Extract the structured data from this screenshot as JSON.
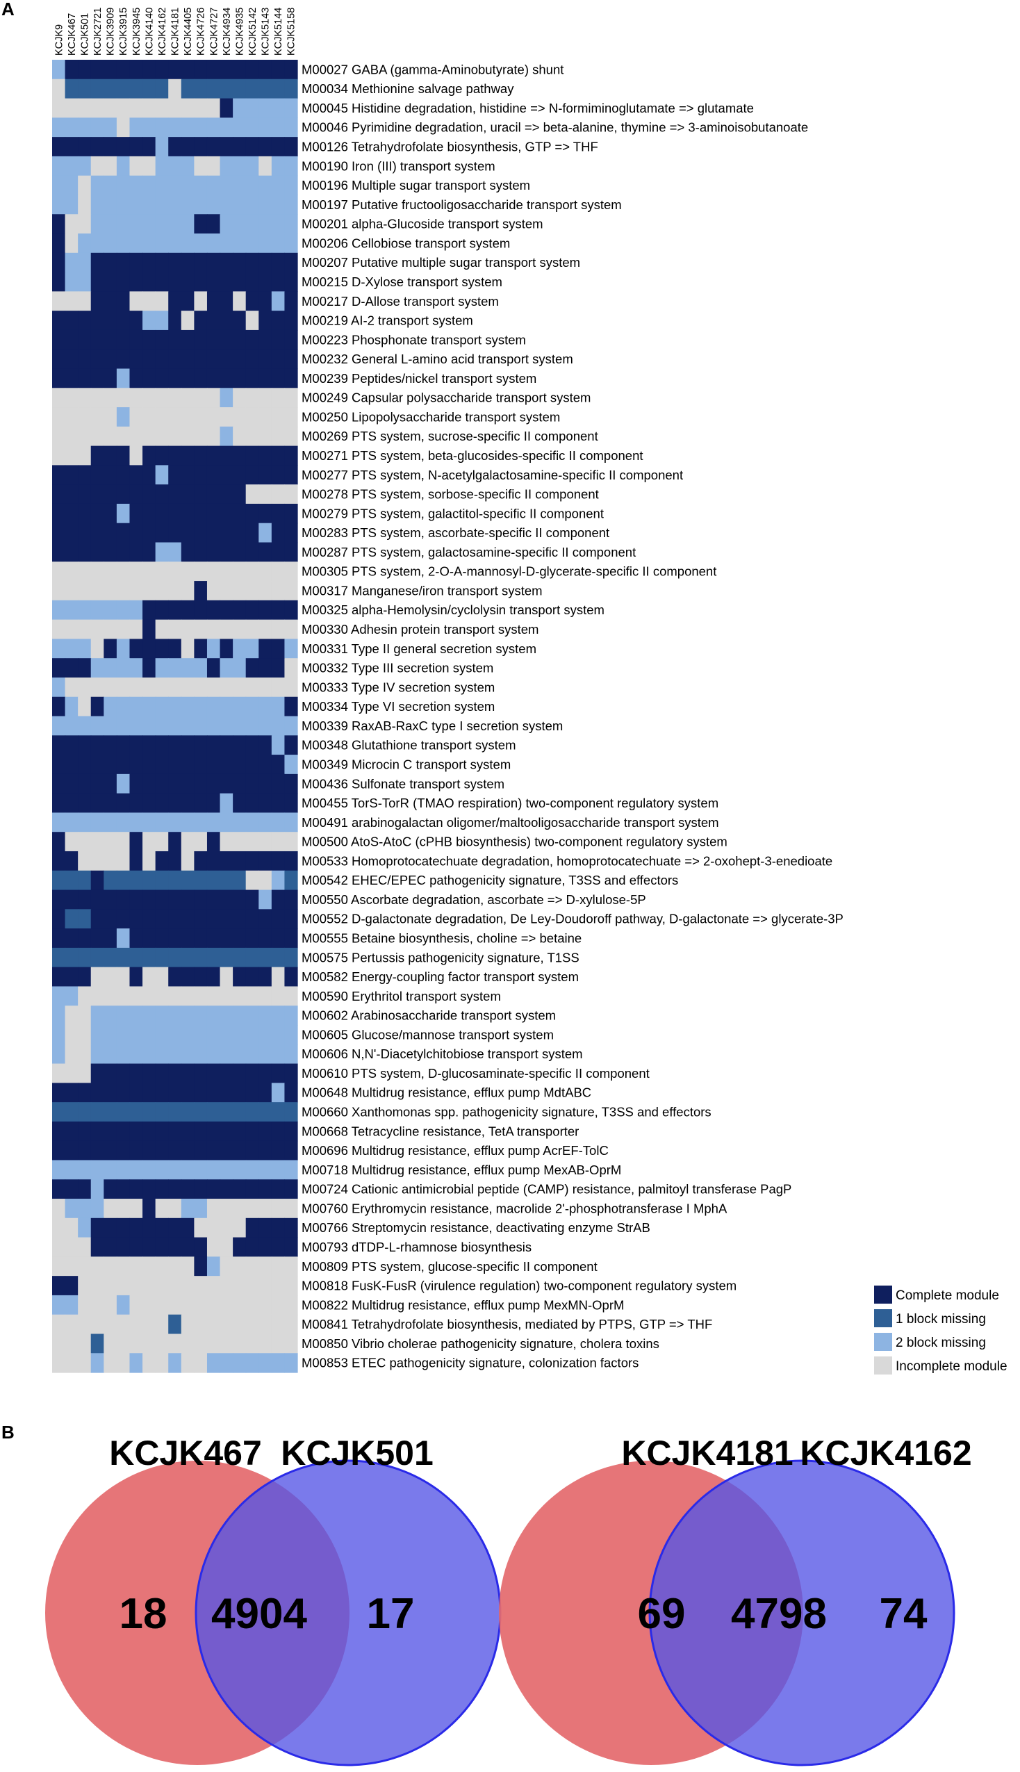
{
  "panels": {
    "a_label": "A",
    "b_label": "B"
  },
  "chart_data": [
    {
      "type": "heatmap",
      "columns": [
        "KCJK9",
        "KCJK467",
        "KCJK501",
        "KCJK2721",
        "KCJK3909",
        "KCJK3915",
        "KCJK3945",
        "KCJK4140",
        "KCJK4162",
        "KCJK4181",
        "KCJK4405",
        "KCJK4726",
        "KCJK4727",
        "KCJK4934",
        "KCJK4935",
        "KCJK5142",
        "KCJK5143",
        "KCJK5144",
        "KCJK5158"
      ],
      "rows": [
        {
          "id": "M00027",
          "name": "GABA (gamma-Aminobutyrate) shunt"
        },
        {
          "id": "M00034",
          "name": "Methionine salvage pathway"
        },
        {
          "id": "M00045",
          "name": "Histidine degradation, histidine => N-formiminoglutamate => glutamate"
        },
        {
          "id": "M00046",
          "name": "Pyrimidine degradation, uracil => beta-alanine, thymine => 3-aminoisobutanoate"
        },
        {
          "id": "M00126",
          "name": "Tetrahydrofolate biosynthesis, GTP => THF"
        },
        {
          "id": "M00190",
          "name": "Iron (III) transport system"
        },
        {
          "id": "M00196",
          "name": "Multiple sugar transport system"
        },
        {
          "id": "M00197",
          "name": "Putative fructooligosaccharide transport system"
        },
        {
          "id": "M00201",
          "name": "alpha-Glucoside transport system"
        },
        {
          "id": "M00206",
          "name": "Cellobiose transport system"
        },
        {
          "id": "M00207",
          "name": "Putative multiple sugar transport system"
        },
        {
          "id": "M00215",
          "name": "D-Xylose transport system"
        },
        {
          "id": "M00217",
          "name": "D-Allose transport system"
        },
        {
          "id": "M00219",
          "name": "AI-2 transport system"
        },
        {
          "id": "M00223",
          "name": "Phosphonate transport system"
        },
        {
          "id": "M00232",
          "name": "General L-amino acid transport system"
        },
        {
          "id": "M00239",
          "name": "Peptides/nickel transport system"
        },
        {
          "id": "M00249",
          "name": "Capsular polysaccharide transport system"
        },
        {
          "id": "M00250",
          "name": "Lipopolysaccharide transport system"
        },
        {
          "id": "M00269",
          "name": "PTS system, sucrose-specific II component"
        },
        {
          "id": "M00271",
          "name": "PTS system, beta-glucosides-specific II component"
        },
        {
          "id": "M00277",
          "name": "PTS system, N-acetylgalactosamine-specific II component"
        },
        {
          "id": "M00278",
          "name": "PTS system, sorbose-specific II component"
        },
        {
          "id": "M00279",
          "name": "PTS system, galactitol-specific II component"
        },
        {
          "id": "M00283",
          "name": "PTS system, ascorbate-specific II component"
        },
        {
          "id": "M00287",
          "name": "PTS system, galactosamine-specific II component"
        },
        {
          "id": "M00305",
          "name": "PTS system, 2-O-A-mannosyl-D-glycerate-specific II component"
        },
        {
          "id": "M00317",
          "name": "Manganese/iron transport system"
        },
        {
          "id": "M00325",
          "name": "alpha-Hemolysin/cyclolysin transport system"
        },
        {
          "id": "M00330",
          "name": "Adhesin protein transport system"
        },
        {
          "id": "M00331",
          "name": "Type II general secretion system"
        },
        {
          "id": "M00332",
          "name": "Type III secretion system"
        },
        {
          "id": "M00333",
          "name": "Type IV secretion system"
        },
        {
          "id": "M00334",
          "name": "Type VI secretion system"
        },
        {
          "id": "M00339",
          "name": "RaxAB-RaxC type I secretion system"
        },
        {
          "id": "M00348",
          "name": "Glutathione transport system"
        },
        {
          "id": "M00349",
          "name": "Microcin C transport system"
        },
        {
          "id": "M00436",
          "name": "Sulfonate transport system"
        },
        {
          "id": "M00455",
          "name": "TorS-TorR (TMAO respiration) two-component regulatory system"
        },
        {
          "id": "M00491",
          "name": "arabinogalactan oligomer/maltooligosaccharide transport system"
        },
        {
          "id": "M00500",
          "name": "AtoS-AtoC (cPHB biosynthesis) two-component regulatory system"
        },
        {
          "id": "M00533",
          "name": "Homoprotocatechuate degradation, homoprotocatechuate => 2-oxohept-3-enedioate"
        },
        {
          "id": "M00542",
          "name": "EHEC/EPEC pathogenicity signature, T3SS and effectors"
        },
        {
          "id": "M00550",
          "name": "Ascorbate degradation, ascorbate => D-xylulose-5P"
        },
        {
          "id": "M00552",
          "name": "D-galactonate degradation, De Ley-Doudoroff pathway, D-galactonate => glycerate-3P"
        },
        {
          "id": "M00555",
          "name": "Betaine biosynthesis, choline => betaine"
        },
        {
          "id": "M00575",
          "name": "Pertussis pathogenicity signature, T1SS"
        },
        {
          "id": "M00582",
          "name": "Energy-coupling factor transport system"
        },
        {
          "id": "M00590",
          "name": "Erythritol transport system"
        },
        {
          "id": "M00602",
          "name": "Arabinosaccharide transport system"
        },
        {
          "id": "M00605",
          "name": "Glucose/mannose transport system"
        },
        {
          "id": "M00606",
          "name": "N,N'-Diacetylchitobiose transport system"
        },
        {
          "id": "M00610",
          "name": "PTS system, D-glucosaminate-specific II component"
        },
        {
          "id": "M00648",
          "name": "Multidrug resistance, efflux pump MdtABC"
        },
        {
          "id": "M00660",
          "name": "Xanthomonas spp. pathogenicity signature, T3SS and effectors"
        },
        {
          "id": "M00668",
          "name": "Tetracycline resistance, TetA transporter"
        },
        {
          "id": "M00696",
          "name": "Multidrug resistance, efflux pump AcrEF-TolC"
        },
        {
          "id": "M00718",
          "name": "Multidrug resistance, efflux pump MexAB-OprM"
        },
        {
          "id": "M00724",
          "name": "Cationic antimicrobial peptide (CAMP) resistance, palmitoyl transferase PagP"
        },
        {
          "id": "M00760",
          "name": "Erythromycin resistance, macrolide 2'-phosphotransferase I MphA"
        },
        {
          "id": "M00766",
          "name": "Streptomycin resistance, deactivating enzyme StrAB"
        },
        {
          "id": "M00793",
          "name": "dTDP-L-rhamnose biosynthesis"
        },
        {
          "id": "M00809",
          "name": "PTS system, glucose-specific II component"
        },
        {
          "id": "M00818",
          "name": "FusK-FusR (virulence regulation) two-component regulatory system"
        },
        {
          "id": "M00822",
          "name": "Multidrug resistance, efflux pump MexMN-OprM"
        },
        {
          "id": "M00841",
          "name": "Tetrahydrofolate biosynthesis, mediated by PTPS, GTP => THF"
        },
        {
          "id": "M00850",
          "name": "Vibrio cholerae pathogenicity signature, cholera toxins"
        },
        {
          "id": "M00853",
          "name": "ETEC pathogenicity signature, colonization factors"
        }
      ],
      "categories": [
        {
          "code": "C",
          "label": "Complete module",
          "color": "#0f1f5e"
        },
        {
          "code": "1",
          "label": "1 block missing",
          "color": "#2e5f95"
        },
        {
          "code": "2",
          "label": "2 block missing",
          "color": "#8db4e2"
        },
        {
          "code": "I",
          "label": "Incomplete module",
          "color": "#d9d9d9"
        }
      ],
      "matrix": [
        "2CCCCCCCCCCCCCCCCCC",
        "I11111111I111111111",
        "IIIIIIIIIIIIIC22222",
        "22222I2222222222222",
        "CCCCCCCC2CCCCCCCCCC",
        "222II2II222II222I22",
        "22I2222222222222222",
        "22I2222222222222222",
        "CII22222222CC222222",
        "CI22222222222222222",
        "C22CCCCCCCCCCCCCCCC",
        "C22CCCCCCCCCCCCCCCC",
        "IIICCCIIICCICCICC2C",
        "CCCCCCC22CICCCCICCC",
        "CCCCCCCCCCCCCCCCCCC",
        "CCCCCCCCCCCCCCCCCCC",
        "CCCCC2CCCCCCCCCCCCC",
        "IIIIIIIIIIIII2IIIII",
        "IIIII2IIIIIIIIIIIII",
        "IIIIIIIIIIIII2IIIII",
        "IIICCCICCCCCCCCCCCC",
        "CCCCCCCC2CCCCCCCCCC",
        "CCCCCCCCCCCCCCCIIII",
        "CCCCC2CCCCCCCCCCCCC",
        "CCCCCCCCCCCCCCCC2CC",
        "CCCCCCCC22CCCCCCCCC",
        "IIIIIIIIIIIIIIIIIII",
        "IIIIIIIIIIICIIIIIII",
        "2222222CCCCCCCCCCCC",
        "IIIIIIICIIIIIIIIIII",
        "222IC2CCCCIC2C22CC2",
        "CCC2222C2222C22CCCI",
        "2IIIIIIIIIIIIIIIIII",
        "C2IC22222222222222C",
        "2222222222222222222",
        "CCCCCCCCCCCCCCCCC2C",
        "CCCCCCCCCCCCCCCCCC2",
        "CCCCC2CCCCCCCCCCCCC",
        "CCCCCCCCCCCCC2CCCCC",
        "2222222222222222222",
        "CIIIIICIICIICIIIIII",
        "CCIIIICICCICCCCCCCC",
        "111C11111111111II21",
        "CCCCCCCCCCCCCCCC2CC",
        "C11CCCCCCCCCCCCCCCC",
        "CCCCC2CCCCCCCCCCCCC",
        "1111111111111111111",
        "CCCIIICIICCCCICCCIC",
        "22IIIIIIIIIIIIIIIII",
        "2II2222222222222222",
        "2II2222222222222222",
        "2II2222222222222222",
        "IIICCCCCCCCCCCCCCCC",
        "CCCCCCCCCCCCCCCCC2C",
        "1111111111111111111",
        "CCCCCCCCCCCCCCCCCCC",
        "CCCCCCCCCCCCCCCCCCC",
        "2222222222222222222",
        "CCC2CCCCCCCCCCCCCCC",
        "I222IIICII22IIIIIII",
        "II2CCCCCCCCIIIICCCC",
        "IIICCCCCCCCCIICCCCC",
        "IIIIIIIIIIIC2IIIIII",
        "CCIIIIIIIIIIIIIIIII",
        "22III2IIIIIIIIIIIII",
        "IIIIIIIII1IIIIIIIII",
        "III1IIIIIIIIIIIIIII",
        "III2II2II2II2222222"
      ]
    },
    {
      "type": "venn",
      "sets": [
        "KCJK467",
        "KCJK501"
      ],
      "values": {
        "only_a": 18,
        "both": 4904,
        "only_b": 17
      }
    },
    {
      "type": "venn",
      "sets": [
        "KCJK4181",
        "KCJK4162"
      ],
      "values": {
        "only_a": 69,
        "both": 4798,
        "only_b": 74
      }
    }
  ]
}
